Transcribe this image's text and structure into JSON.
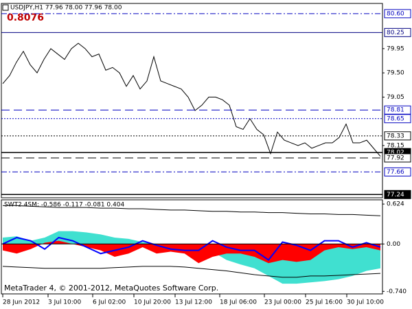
{
  "chart_data": [
    {
      "type": "line",
      "title": "USDJPY,H1  77.96 78.00 77.96 78.00",
      "annotation": "0.8076",
      "color": "#000000",
      "values": [
        79.3,
        79.45,
        79.7,
        79.9,
        79.65,
        79.5,
        79.75,
        79.95,
        79.85,
        79.75,
        79.95,
        80.05,
        79.95,
        79.8,
        79.85,
        79.55,
        79.6,
        79.5,
        79.25,
        79.45,
        79.2,
        79.35,
        79.8,
        79.35,
        79.3,
        79.25,
        79.2,
        79.05,
        78.8,
        78.9,
        79.05,
        79.05,
        79.0,
        78.9,
        78.5,
        78.45,
        78.65,
        78.45,
        78.35,
        78.0,
        78.4,
        78.25,
        78.2,
        78.15,
        78.2,
        78.1,
        78.15,
        78.2,
        78.2,
        78.3,
        78.55,
        78.2,
        78.2,
        78.25,
        78.1,
        77.95
      ],
      "xlim": [
        0,
        55
      ],
      "xticks": [
        {
          "value": 0,
          "label": "28 Jun 2012"
        },
        {
          "value": 6.6,
          "label": "3 Jul 10:00"
        },
        {
          "value": 13.1,
          "label": "6 Jul 02:00"
        },
        {
          "value": 19.1,
          "label": "10 Jul 20:00"
        },
        {
          "value": 25.1,
          "label": "13 Jul 12:00"
        },
        {
          "value": 31.6,
          "label": "18 Jul 06:00"
        },
        {
          "value": 38.1,
          "label": "23 Jul 00:00"
        },
        {
          "value": 44.1,
          "label": "25 Jul 16:00"
        },
        {
          "value": 50.1,
          "label": "30 Jul 10:00"
        }
      ],
      "ylim": [
        77.18,
        80.79
      ],
      "yticks": [
        79.95,
        {
          "value": 79.5,
          "label": "79.50"
        },
        79.05,
        78.15
      ],
      "levels": [
        {
          "value": 80.6,
          "label": "80.60",
          "color": "#0000c0",
          "style": "dashdot",
          "highlight": false
        },
        {
          "value": 80.25,
          "label": "80.25",
          "color": "#000080",
          "style": "solid",
          "highlight": false
        },
        {
          "value": 78.81,
          "label": "78.81",
          "color": "#0000c0",
          "style": "dashed",
          "highlight": false
        },
        {
          "value": 78.65,
          "label": "78.65",
          "color": "#0000c0",
          "style": "dotted",
          "highlight": false
        },
        {
          "value": 78.33,
          "label": "78.33",
          "color": "#000000",
          "style": "dotted",
          "highlight": false
        },
        {
          "value": 78.02,
          "label": "78.02",
          "color": "#000000",
          "style": "solid",
          "highlight": true
        },
        {
          "value": 77.92,
          "label": "77.92",
          "color": "#000000",
          "style": "dashed",
          "highlight": false
        },
        {
          "value": 77.66,
          "label": "77.66",
          "color": "#0000c0",
          "style": "dashdot",
          "highlight": false
        },
        {
          "value": 77.24,
          "label": "77.24",
          "color": "#000000",
          "style": "solid",
          "highlight": true
        }
      ]
    },
    {
      "type": "area",
      "title": "SWT2.4SM: -0.586 -0.117 -0.081 0.404",
      "watermark": "MetaTrader 4, © 2001-2012, MetaQuotes Software Corp.",
      "xlim": [
        0,
        27
      ],
      "ylim": [
        -0.78,
        0.69
      ],
      "yticks": [
        0.624,
        {
          "value": 0,
          "label": "0.00"
        },
        {
          "value": -0.74,
          "label": "-0.740"
        }
      ],
      "series": [
        {
          "kind": "area",
          "color": "#40e0d0",
          "values": [
            0.1,
            0.12,
            0.05,
            0.1,
            0.2,
            0.2,
            0.18,
            0.15,
            0.1,
            0.08,
            0.03,
            0.0,
            -0.02,
            -0.05,
            -0.08,
            -0.12,
            -0.25,
            -0.32,
            -0.38,
            -0.5,
            -0.62,
            -0.62,
            -0.6,
            -0.58,
            -0.55,
            -0.5,
            -0.42,
            -0.38
          ]
        },
        {
          "kind": "area",
          "color": "#ff0000",
          "values": [
            -0.1,
            -0.15,
            -0.08,
            0.02,
            0.05,
            0.0,
            -0.05,
            -0.1,
            -0.2,
            -0.15,
            -0.05,
            -0.15,
            -0.12,
            -0.15,
            -0.3,
            -0.2,
            -0.15,
            -0.15,
            -0.2,
            -0.3,
            -0.25,
            -0.28,
            -0.25,
            -0.1,
            -0.05,
            -0.08,
            -0.05,
            -0.1
          ]
        },
        {
          "kind": "line",
          "color": "#0000ff",
          "values": [
            0.0,
            0.1,
            0.05,
            -0.08,
            0.1,
            0.05,
            -0.05,
            -0.15,
            -0.1,
            -0.05,
            0.05,
            -0.02,
            -0.08,
            -0.1,
            -0.1,
            0.05,
            -0.05,
            -0.1,
            -0.1,
            -0.25,
            0.03,
            -0.02,
            -0.1,
            0.05,
            0.05,
            -0.05,
            0.02,
            -0.05
          ]
        },
        {
          "kind": "line",
          "color": "#000000",
          "values": [
            0.6,
            0.6,
            0.59,
            0.58,
            0.57,
            0.57,
            0.57,
            0.56,
            0.56,
            0.55,
            0.55,
            0.54,
            0.53,
            0.53,
            0.52,
            0.51,
            0.51,
            0.5,
            0.5,
            0.49,
            0.49,
            0.48,
            0.47,
            0.47,
            0.46,
            0.46,
            0.45,
            0.44
          ]
        },
        {
          "kind": "line",
          "color": "#000000",
          "values": [
            -0.35,
            -0.36,
            -0.37,
            -0.38,
            -0.38,
            -0.38,
            -0.38,
            -0.38,
            -0.37,
            -0.36,
            -0.35,
            -0.35,
            -0.35,
            -0.36,
            -0.38,
            -0.4,
            -0.42,
            -0.45,
            -0.48,
            -0.5,
            -0.52,
            -0.52,
            -0.5,
            -0.5,
            -0.49,
            -0.48,
            -0.47,
            -0.46
          ]
        }
      ]
    }
  ]
}
